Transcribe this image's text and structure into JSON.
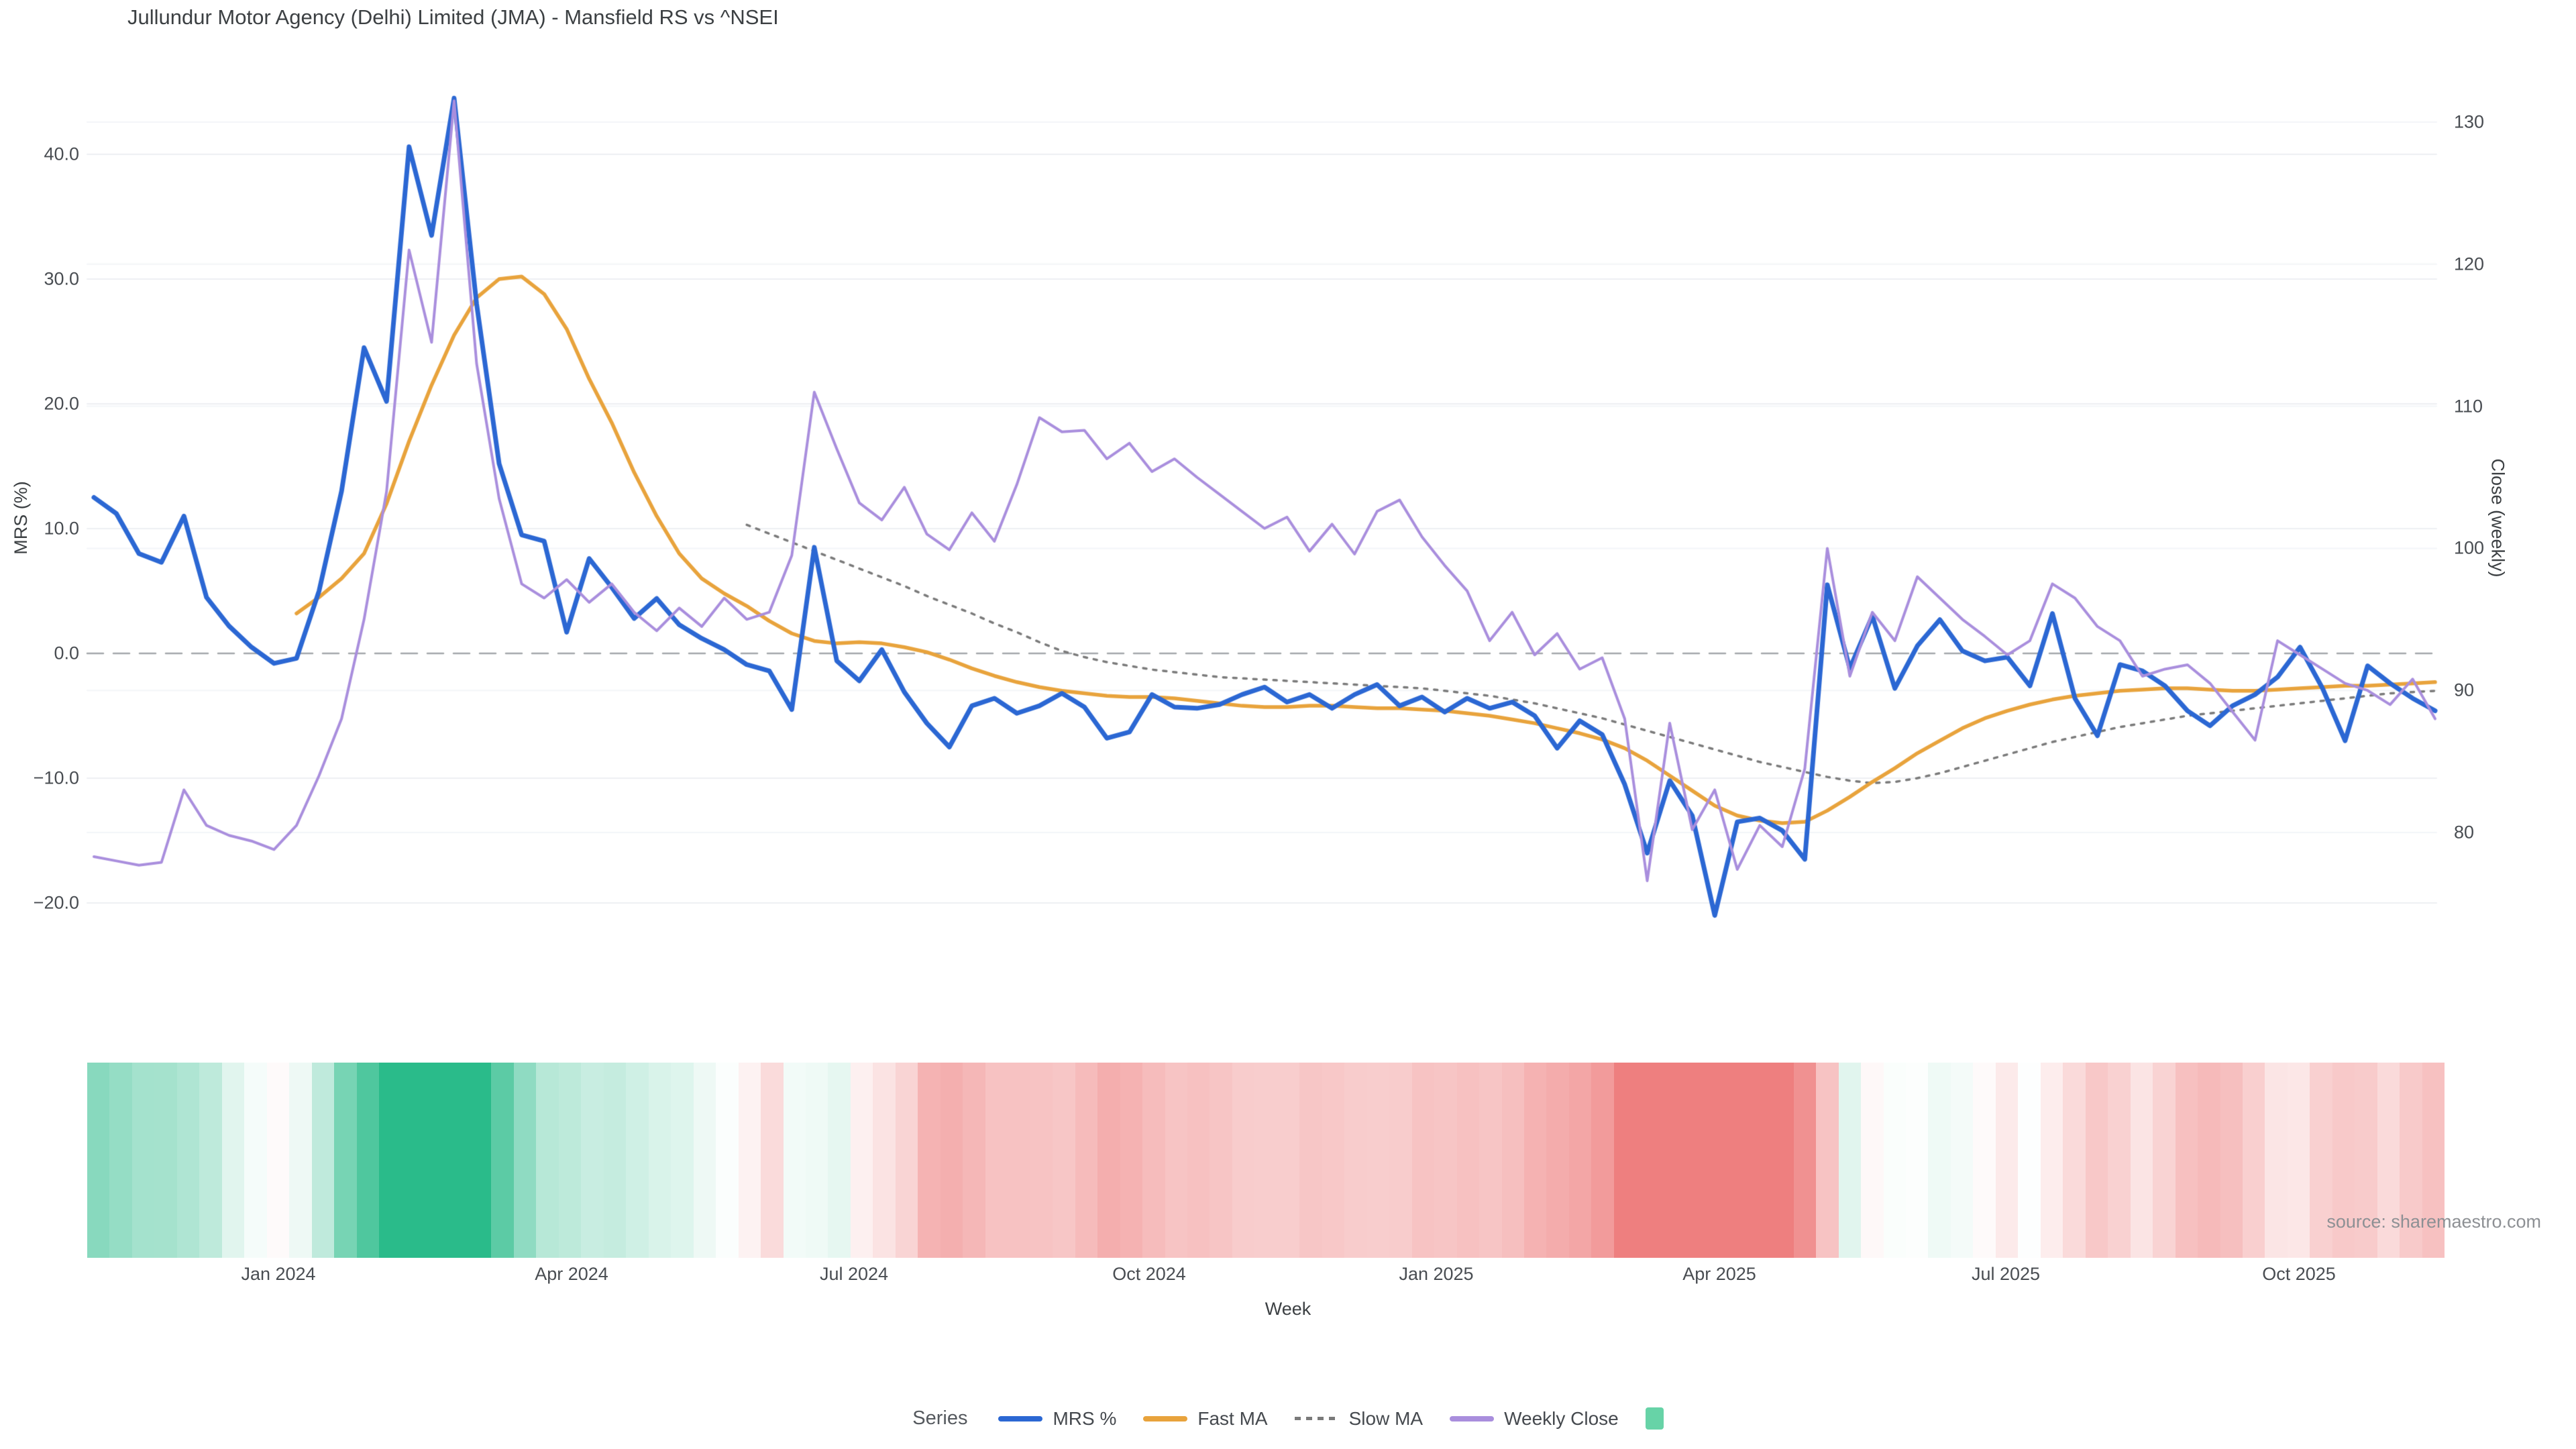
{
  "title": "Jullundur Motor Agency (Delhi) Limited (JMA) - Mansfield RS vs ^NSEI",
  "source": "source: sharemaestro.com",
  "axes": {
    "left": {
      "title": "MRS (%)",
      "tick_labels": [
        "40.0",
        "30.0",
        "20.0",
        "10.0",
        "0.0",
        "−10.0",
        "−20.0"
      ],
      "tick_values": [
        40,
        30,
        20,
        10,
        0,
        -10,
        -20
      ]
    },
    "right": {
      "title": "Close (weekly)",
      "tick_labels": [
        "130",
        "120",
        "110",
        "100",
        "90",
        "80"
      ],
      "tick_values": [
        130,
        120,
        110,
        100,
        90,
        80
      ]
    },
    "x": {
      "title": "Week",
      "tick_labels": [
        "Jan 2024",
        "Apr 2024",
        "Jul 2024",
        "Oct 2024",
        "Jan 2025",
        "Apr 2025",
        "Jul 2025",
        "Oct 2025"
      ]
    }
  },
  "legend": {
    "label": "Series",
    "items": [
      {
        "label": "MRS %",
        "swatch": "line",
        "color": "#2b67d3"
      },
      {
        "label": "Fast MA",
        "swatch": "line",
        "color": "#e8a33c"
      },
      {
        "label": "Slow MA",
        "swatch": "dotted",
        "color": "#7a7a7a"
      },
      {
        "label": "Weekly Close",
        "swatch": "line",
        "color": "#a98edd"
      },
      {
        "label": "",
        "swatch": "square",
        "color": "#67d3a7"
      }
    ]
  },
  "chart_data": {
    "type": "line",
    "n_points": 105,
    "x_axis": {
      "title": "Week",
      "tick_labels": [
        "Jan 2024",
        "Apr 2024",
        "Jul 2024",
        "Oct 2024",
        "Jan 2025",
        "Apr 2025",
        "Jul 2025",
        "Oct 2025"
      ],
      "range_note": "weekly points, Nov 2023 to Nov 2025"
    },
    "y_left": {
      "title": "MRS (%)",
      "ticks": [
        40,
        30,
        20,
        10,
        0,
        -10,
        -20
      ],
      "range": [
        -25,
        47
      ]
    },
    "y_right": {
      "title": "Close (weekly)",
      "ticks": [
        130,
        120,
        110,
        100,
        90,
        80
      ],
      "range": [
        74,
        133
      ]
    },
    "zero_reference_line": 0,
    "series": [
      {
        "name": "MRS %",
        "axis": "left",
        "color": "#2b67d3",
        "style": "solid",
        "values": [
          12.5,
          11.2,
          8.0,
          7.3,
          11.0,
          4.5,
          2.2,
          0.5,
          -0.8,
          -0.4,
          5.0,
          13.0,
          24.5,
          20.2,
          40.6,
          33.5,
          44.5,
          28.0,
          15.2,
          9.5,
          9.0,
          1.7,
          7.6,
          5.3,
          2.8,
          4.4,
          2.3,
          1.2,
          0.3,
          -0.9,
          -1.4,
          -4.5,
          8.5,
          -0.6,
          -2.2,
          0.3,
          -3.1,
          -5.6,
          -7.5,
          -4.2,
          -3.6,
          -4.8,
          -4.2,
          -3.2,
          -4.3,
          -6.8,
          -6.3,
          -3.3,
          -4.3,
          -4.4,
          -4.1,
          -3.3,
          -2.7,
          -3.9,
          -3.3,
          -4.4,
          -3.3,
          -2.5,
          -4.2,
          -3.5,
          -4.7,
          -3.6,
          -4.4,
          -3.9,
          -5.0,
          -7.6,
          -5.4,
          -6.5,
          -10.5,
          -16.0,
          -10.2,
          -13.0,
          -21.0,
          -13.5,
          -13.2,
          -14.2,
          -16.5,
          5.5,
          -1.2,
          3.0,
          -2.8,
          0.6,
          2.7,
          0.2,
          -0.6,
          -0.3,
          -2.6,
          3.2,
          -3.6,
          -6.6,
          -0.9,
          -1.4,
          -2.6,
          -4.6,
          -5.8,
          -4.2,
          -3.3,
          -1.9,
          0.5,
          -2.8,
          -7.0,
          -1.0,
          -2.4,
          -3.6,
          -4.6
        ]
      },
      {
        "name": "Fast MA",
        "axis": "left",
        "color": "#e8a33c",
        "style": "solid",
        "values": [
          null,
          null,
          null,
          null,
          null,
          null,
          null,
          null,
          null,
          3.2,
          4.5,
          6.0,
          8.0,
          12.0,
          17.0,
          21.5,
          25.5,
          28.5,
          30.0,
          30.2,
          28.8,
          26.0,
          22.0,
          18.5,
          14.5,
          11.0,
          8.0,
          6.0,
          4.8,
          3.8,
          2.6,
          1.6,
          1.0,
          0.8,
          0.9,
          0.8,
          0.5,
          0.1,
          -0.5,
          -1.2,
          -1.8,
          -2.3,
          -2.7,
          -3.0,
          -3.2,
          -3.4,
          -3.5,
          -3.5,
          -3.6,
          -3.8,
          -4.0,
          -4.2,
          -4.3,
          -4.3,
          -4.2,
          -4.2,
          -4.3,
          -4.4,
          -4.4,
          -4.5,
          -4.6,
          -4.8,
          -5.0,
          -5.3,
          -5.6,
          -6.0,
          -6.4,
          -6.9,
          -7.6,
          -8.6,
          -9.8,
          -11.0,
          -12.2,
          -13.0,
          -13.4,
          -13.6,
          -13.5,
          -12.6,
          -11.5,
          -10.3,
          -9.2,
          -8.0,
          -7.0,
          -6.0,
          -5.2,
          -4.6,
          -4.1,
          -3.7,
          -3.4,
          -3.2,
          -3.0,
          -2.9,
          -2.8,
          -2.8,
          -2.9,
          -3.0,
          -3.0,
          -2.9,
          -2.8,
          -2.7,
          -2.6,
          -2.6,
          -2.5,
          -2.4,
          -2.3
        ]
      },
      {
        "name": "Slow MA",
        "axis": "left",
        "color": "#7a7a7a",
        "style": "dotted",
        "values": [
          null,
          null,
          null,
          null,
          null,
          null,
          null,
          null,
          null,
          null,
          null,
          null,
          null,
          null,
          null,
          null,
          null,
          null,
          null,
          null,
          null,
          null,
          null,
          null,
          null,
          null,
          null,
          null,
          null,
          10.3,
          9.6,
          8.9,
          8.2,
          7.5,
          6.8,
          6.1,
          5.4,
          4.6,
          3.9,
          3.2,
          2.4,
          1.7,
          0.9,
          0.2,
          -0.3,
          -0.7,
          -1.0,
          -1.3,
          -1.5,
          -1.7,
          -1.9,
          -2.0,
          -2.1,
          -2.2,
          -2.3,
          -2.4,
          -2.5,
          -2.6,
          -2.7,
          -2.8,
          -3.0,
          -3.2,
          -3.4,
          -3.7,
          -4.0,
          -4.4,
          -4.8,
          -5.2,
          -5.7,
          -6.2,
          -6.7,
          -7.2,
          -7.7,
          -8.2,
          -8.7,
          -9.1,
          -9.5,
          -9.9,
          -10.2,
          -10.4,
          -10.3,
          -10.0,
          -9.6,
          -9.1,
          -8.6,
          -8.1,
          -7.6,
          -7.1,
          -6.7,
          -6.3,
          -5.9,
          -5.6,
          -5.3,
          -5.0,
          -4.8,
          -4.6,
          -4.4,
          -4.2,
          -4.0,
          -3.8,
          -3.6,
          -3.4,
          -3.2,
          -3.1,
          -3.0
        ]
      },
      {
        "name": "Weekly Close",
        "axis": "right",
        "color": "#a98edd",
        "style": "solid",
        "values": [
          78.3,
          78.0,
          77.7,
          77.9,
          83.0,
          80.5,
          79.8,
          79.4,
          78.8,
          80.5,
          84.0,
          88.0,
          95.0,
          104.0,
          121.0,
          114.5,
          131.5,
          113.0,
          103.5,
          97.5,
          96.5,
          97.8,
          96.2,
          97.5,
          95.5,
          94.2,
          95.8,
          94.5,
          96.5,
          95.0,
          95.5,
          99.5,
          111.0,
          107.0,
          103.2,
          102.0,
          104.3,
          101.0,
          99.9,
          102.5,
          100.5,
          104.5,
          109.2,
          108.2,
          108.3,
          106.3,
          107.4,
          105.4,
          106.3,
          105.0,
          103.8,
          102.6,
          101.4,
          102.2,
          99.8,
          101.7,
          99.6,
          102.6,
          103.4,
          100.8,
          98.8,
          97.0,
          93.5,
          95.5,
          92.5,
          94.0,
          91.5,
          92.3,
          88.0,
          76.6,
          87.7,
          80.2,
          83.0,
          77.4,
          80.5,
          79.0,
          84.5,
          100.0,
          91.0,
          95.5,
          93.5,
          98.0,
          96.5,
          95.0,
          93.8,
          92.5,
          93.5,
          97.5,
          96.5,
          94.5,
          93.5,
          91.0,
          91.5,
          91.8,
          90.5,
          88.5,
          86.5,
          93.5,
          92.5,
          91.5,
          90.5,
          90.0,
          89.0,
          90.8,
          88.0
        ]
      }
    ],
    "heatmap": {
      "basis": "3-week smoothed MRS % per weekly cell (green = positive, red = negative)",
      "positive_color": "#2abb8a",
      "negative_color": "#ee7f7f",
      "neutral_color": "#ffffff"
    }
  }
}
